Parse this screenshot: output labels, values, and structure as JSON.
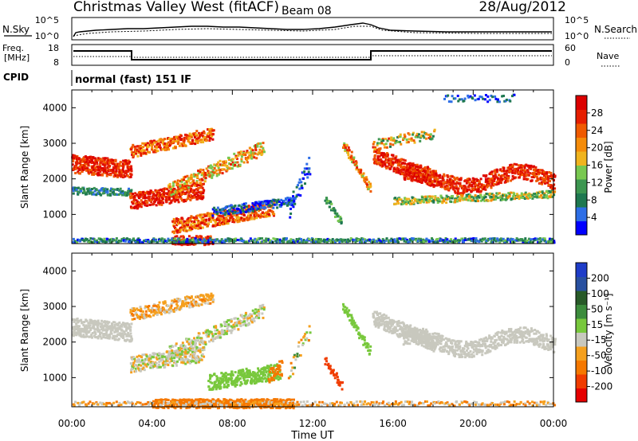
{
  "header": {
    "station": "Christmas Valley West (fitACF)",
    "beam": "Beam 08",
    "date": "28/Aug/2012"
  },
  "strip": {
    "nsky_label": "N.Sky",
    "nsearch_label": "N.Search",
    "noise_ticks_left": [
      "10^5",
      "10^0"
    ],
    "noise_ticks_right": [
      "10^5",
      "10^0"
    ],
    "freq_label": [
      "Freq.",
      "[MHz]"
    ],
    "freq_ticks": [
      "18",
      "8"
    ],
    "nave_label": "Nave",
    "nave_ticks": [
      "60",
      "0"
    ],
    "cpid_label": "CPID",
    "cpid_value": "normal (fast) 151 IF"
  },
  "colors": {
    "power": [
      "#0000ff",
      "#2d6ee6",
      "#1e7850",
      "#3c9650",
      "#78c850",
      "#f0b41e",
      "#f58c0a",
      "#f05a00",
      "#e61e00",
      "#dc0000"
    ],
    "velocity": [
      "#1e3cc8",
      "#2850a0",
      "#285a28",
      "#3c8c3c",
      "#78c83c",
      "#c8c8be",
      "#f5a01e",
      "#f57800",
      "#f03c00",
      "#e60000"
    ]
  },
  "chart_data": [
    {
      "type": "heatmap",
      "title": "Power",
      "xlabel": "Time UT",
      "ylabel": "Slant Range [km]",
      "x_ticks": [
        "00:00",
        "04:00",
        "08:00",
        "12:00",
        "16:00",
        "20:00",
        "00:00"
      ],
      "xlim": [
        0,
        24
      ],
      "ylim": [
        180,
        4500
      ],
      "y_ticks": [
        "1000",
        "2000",
        "3000",
        "4000"
      ],
      "colorbar_label": "Power [dB]",
      "colorbar_ticks": [
        "4",
        "8",
        "12",
        "16",
        "20",
        "24",
        "28"
      ],
      "colorbar_range": [
        0,
        30
      ]
    },
    {
      "type": "heatmap",
      "title": "Velocity",
      "xlabel": "Time UT",
      "ylabel": "Slant Range [km]",
      "x_ticks": [
        "00:00",
        "04:00",
        "08:00",
        "12:00",
        "16:00",
        "20:00",
        "00:00"
      ],
      "xlim": [
        0,
        24
      ],
      "ylim": [
        180,
        4500
      ],
      "y_ticks": [
        "1000",
        "2000",
        "3000",
        "4000"
      ],
      "colorbar_label": "Velocity [m s⁻¹]",
      "colorbar_ticks": [
        "200",
        "100",
        "50",
        "15",
        "-15",
        "-50",
        "-100",
        "-200"
      ],
      "colorbar_range": [
        -250,
        250
      ]
    }
  ]
}
